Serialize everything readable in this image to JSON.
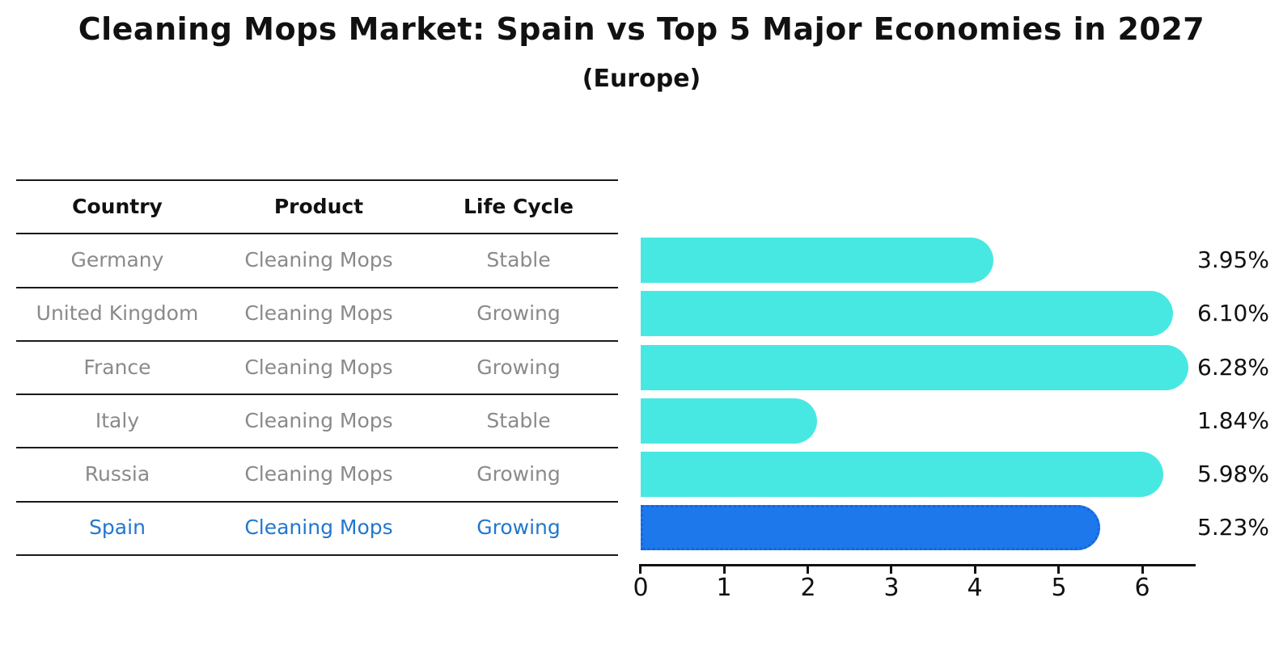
{
  "title": "Cleaning Mops Market: Spain vs Top 5 Major Economies in 2027",
  "subtitle": "(Europe)",
  "table": {
    "headers": {
      "country": "Country",
      "product": "Product",
      "life_cycle": "Life Cycle"
    },
    "rows": [
      {
        "country": "Germany",
        "product": "Cleaning Mops",
        "life_cycle": "Stable",
        "highlighted": false
      },
      {
        "country": "United Kingdom",
        "product": "Cleaning Mops",
        "life_cycle": "Growing",
        "highlighted": false
      },
      {
        "country": "France",
        "product": "Cleaning Mops",
        "life_cycle": "Growing",
        "highlighted": false
      },
      {
        "country": "Italy",
        "product": "Cleaning Mops",
        "life_cycle": "Stable",
        "highlighted": false
      },
      {
        "country": "Russia",
        "product": "Cleaning Mops",
        "life_cycle": "Growing",
        "highlighted": false
      },
      {
        "country": "Spain",
        "product": "Cleaning Mops",
        "life_cycle": "Growing",
        "highlighted": true
      }
    ]
  },
  "chart_data": {
    "type": "bar",
    "orientation": "horizontal",
    "categories": [
      "Germany",
      "United Kingdom",
      "France",
      "Italy",
      "Russia",
      "Spain"
    ],
    "values": [
      3.95,
      6.1,
      6.28,
      1.84,
      5.98,
      5.23
    ],
    "labels": [
      "3.95%",
      "6.10%",
      "6.28%",
      "1.84%",
      "5.98%",
      "5.23%"
    ],
    "x_ticks": [
      "0",
      "1",
      "2",
      "3",
      "4",
      "5",
      "6"
    ],
    "xlim": [
      0,
      6.6
    ],
    "grid": false,
    "legend": false,
    "bar_color": "#48e8e2",
    "highlight_bar_color": "#1c78eb",
    "highlight_index": 5,
    "title": "Cleaning Mops Market: Spain vs Top 5 Major Economies in 2027",
    "subtitle": "(Europe)",
    "xlabel": "",
    "ylabel": ""
  },
  "colors": {
    "text": "#111111",
    "muted_text": "#8a8a8a",
    "highlight_text": "#2277ce",
    "line": "#1a1a1a",
    "bar": "#48e8e2",
    "highlight_bar": "#1c78eb"
  }
}
